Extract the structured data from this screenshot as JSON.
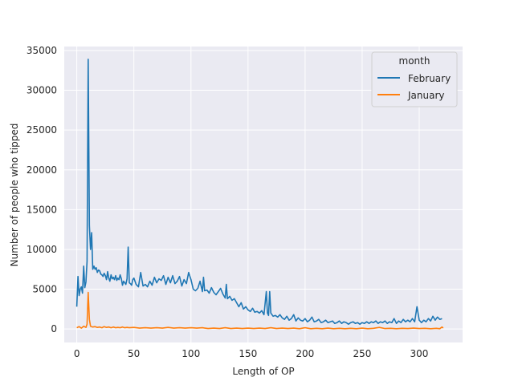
{
  "chart_data": {
    "type": "line",
    "xlabel": "Length of OP",
    "ylabel": "Number of people who tipped",
    "xlim": [
      -11,
      338
    ],
    "ylim": [
      -1700,
      35500
    ],
    "xticks": [
      0,
      50,
      100,
      150,
      200,
      250,
      300
    ],
    "yticks": [
      0,
      5000,
      10000,
      15000,
      20000,
      25000,
      30000,
      35000
    ],
    "grid": true,
    "legend": {
      "title": "month",
      "placement": "top-right",
      "entries": [
        "February",
        "January"
      ]
    },
    "series": [
      {
        "name": "February",
        "color": "#1f77b4",
        "points": [
          [
            0,
            2800
          ],
          [
            1,
            6600
          ],
          [
            2,
            4200
          ],
          [
            3,
            5000
          ],
          [
            4,
            5300
          ],
          [
            5,
            4500
          ],
          [
            6,
            7900
          ],
          [
            7,
            5200
          ],
          [
            8,
            5900
          ],
          [
            9,
            8500
          ],
          [
            10,
            33900
          ],
          [
            11,
            13000
          ],
          [
            12,
            10000
          ],
          [
            13,
            12100
          ],
          [
            14,
            7500
          ],
          [
            15,
            7900
          ],
          [
            16,
            7500
          ],
          [
            17,
            7700
          ],
          [
            18,
            7100
          ],
          [
            19,
            7400
          ],
          [
            20,
            7300
          ],
          [
            21,
            6900
          ],
          [
            22,
            6800
          ],
          [
            23,
            6600
          ],
          [
            24,
            7000
          ],
          [
            25,
            6700
          ],
          [
            26,
            6200
          ],
          [
            27,
            7200
          ],
          [
            28,
            6400
          ],
          [
            29,
            6000
          ],
          [
            30,
            6800
          ],
          [
            31,
            6300
          ],
          [
            32,
            6500
          ],
          [
            33,
            6200
          ],
          [
            34,
            6700
          ],
          [
            35,
            6100
          ],
          [
            36,
            6400
          ],
          [
            37,
            6200
          ],
          [
            38,
            6800
          ],
          [
            39,
            6300
          ],
          [
            40,
            5500
          ],
          [
            41,
            6000
          ],
          [
            42,
            5800
          ],
          [
            43,
            5600
          ],
          [
            44,
            6300
          ],
          [
            45,
            10300
          ],
          [
            46,
            5800
          ],
          [
            47,
            5700
          ],
          [
            48,
            5500
          ],
          [
            49,
            6200
          ],
          [
            50,
            6400
          ],
          [
            52,
            5600
          ],
          [
            54,
            5300
          ],
          [
            56,
            7100
          ],
          [
            58,
            5400
          ],
          [
            60,
            5600
          ],
          [
            62,
            5300
          ],
          [
            64,
            6000
          ],
          [
            66,
            5500
          ],
          [
            68,
            6500
          ],
          [
            70,
            5800
          ],
          [
            72,
            6300
          ],
          [
            74,
            6100
          ],
          [
            76,
            6700
          ],
          [
            78,
            5600
          ],
          [
            80,
            6500
          ],
          [
            82,
            5800
          ],
          [
            84,
            6700
          ],
          [
            86,
            5700
          ],
          [
            88,
            6000
          ],
          [
            90,
            6600
          ],
          [
            92,
            5400
          ],
          [
            94,
            6200
          ],
          [
            96,
            5700
          ],
          [
            98,
            7100
          ],
          [
            100,
            6200
          ],
          [
            102,
            5000
          ],
          [
            104,
            4800
          ],
          [
            106,
            5100
          ],
          [
            108,
            6000
          ],
          [
            110,
            4700
          ],
          [
            111,
            6500
          ],
          [
            112,
            4800
          ],
          [
            114,
            4900
          ],
          [
            116,
            4500
          ],
          [
            118,
            5200
          ],
          [
            120,
            4600
          ],
          [
            122,
            4300
          ],
          [
            124,
            4700
          ],
          [
            126,
            5100
          ],
          [
            128,
            4400
          ],
          [
            130,
            3900
          ],
          [
            131,
            5600
          ],
          [
            132,
            3800
          ],
          [
            134,
            4100
          ],
          [
            136,
            3600
          ],
          [
            138,
            3800
          ],
          [
            140,
            3300
          ],
          [
            142,
            2800
          ],
          [
            144,
            3300
          ],
          [
            146,
            2500
          ],
          [
            148,
            2800
          ],
          [
            150,
            2400
          ],
          [
            152,
            2200
          ],
          [
            154,
            2600
          ],
          [
            156,
            2100
          ],
          [
            158,
            2200
          ],
          [
            160,
            2000
          ],
          [
            162,
            2300
          ],
          [
            164,
            1800
          ],
          [
            166,
            4700
          ],
          [
            167,
            2000
          ],
          [
            168,
            1700
          ],
          [
            169,
            4700
          ],
          [
            170,
            2000
          ],
          [
            172,
            1600
          ],
          [
            174,
            1700
          ],
          [
            176,
            1500
          ],
          [
            178,
            1800
          ],
          [
            180,
            1400
          ],
          [
            182,
            1200
          ],
          [
            184,
            1600
          ],
          [
            186,
            1100
          ],
          [
            188,
            1300
          ],
          [
            190,
            1800
          ],
          [
            192,
            1000
          ],
          [
            194,
            1400
          ],
          [
            196,
            1100
          ],
          [
            198,
            1000
          ],
          [
            200,
            1300
          ],
          [
            202,
            900
          ],
          [
            204,
            1100
          ],
          [
            206,
            1500
          ],
          [
            208,
            900
          ],
          [
            210,
            1000
          ],
          [
            212,
            1200
          ],
          [
            214,
            800
          ],
          [
            216,
            900
          ],
          [
            218,
            1100
          ],
          [
            220,
            800
          ],
          [
            222,
            900
          ],
          [
            224,
            1000
          ],
          [
            226,
            700
          ],
          [
            228,
            800
          ],
          [
            230,
            1000
          ],
          [
            232,
            700
          ],
          [
            234,
            900
          ],
          [
            236,
            800
          ],
          [
            238,
            600
          ],
          [
            240,
            800
          ],
          [
            242,
            900
          ],
          [
            244,
            700
          ],
          [
            246,
            800
          ],
          [
            248,
            600
          ],
          [
            250,
            800
          ],
          [
            252,
            700
          ],
          [
            254,
            900
          ],
          [
            256,
            700
          ],
          [
            258,
            900
          ],
          [
            260,
            800
          ],
          [
            262,
            1000
          ],
          [
            264,
            700
          ],
          [
            266,
            900
          ],
          [
            268,
            800
          ],
          [
            270,
            1000
          ],
          [
            272,
            700
          ],
          [
            274,
            900
          ],
          [
            276,
            800
          ],
          [
            278,
            1300
          ],
          [
            280,
            700
          ],
          [
            282,
            1000
          ],
          [
            284,
            800
          ],
          [
            286,
            1200
          ],
          [
            288,
            900
          ],
          [
            290,
            1100
          ],
          [
            292,
            900
          ],
          [
            294,
            1300
          ],
          [
            296,
            900
          ],
          [
            298,
            2800
          ],
          [
            300,
            1100
          ],
          [
            302,
            800
          ],
          [
            304,
            1100
          ],
          [
            306,
            900
          ],
          [
            308,
            1300
          ],
          [
            310,
            1000
          ],
          [
            312,
            1600
          ],
          [
            314,
            1100
          ],
          [
            316,
            1500
          ],
          [
            318,
            1200
          ],
          [
            320,
            1300
          ]
        ]
      },
      {
        "name": "January",
        "color": "#ff7f0e",
        "points": [
          [
            0,
            150
          ],
          [
            2,
            300
          ],
          [
            4,
            100
          ],
          [
            6,
            350
          ],
          [
            8,
            200
          ],
          [
            9,
            600
          ],
          [
            10,
            4600
          ],
          [
            11,
            1200
          ],
          [
            12,
            350
          ],
          [
            14,
            250
          ],
          [
            16,
            300
          ],
          [
            18,
            200
          ],
          [
            20,
            250
          ],
          [
            22,
            150
          ],
          [
            24,
            300
          ],
          [
            26,
            200
          ],
          [
            28,
            250
          ],
          [
            30,
            150
          ],
          [
            32,
            250
          ],
          [
            34,
            150
          ],
          [
            36,
            200
          ],
          [
            38,
            150
          ],
          [
            40,
            250
          ],
          [
            42,
            150
          ],
          [
            44,
            200
          ],
          [
            46,
            150
          ],
          [
            50,
            200
          ],
          [
            55,
            100
          ],
          [
            60,
            150
          ],
          [
            65,
            100
          ],
          [
            70,
            150
          ],
          [
            75,
            100
          ],
          [
            80,
            200
          ],
          [
            85,
            100
          ],
          [
            90,
            150
          ],
          [
            95,
            100
          ],
          [
            100,
            150
          ],
          [
            105,
            100
          ],
          [
            110,
            150
          ],
          [
            115,
            50
          ],
          [
            120,
            100
          ],
          [
            125,
            50
          ],
          [
            130,
            150
          ],
          [
            135,
            50
          ],
          [
            140,
            100
          ],
          [
            145,
            50
          ],
          [
            150,
            100
          ],
          [
            155,
            50
          ],
          [
            160,
            100
          ],
          [
            165,
            50
          ],
          [
            170,
            150
          ],
          [
            175,
            50
          ],
          [
            180,
            100
          ],
          [
            185,
            50
          ],
          [
            190,
            100
          ],
          [
            195,
            30
          ],
          [
            200,
            150
          ],
          [
            205,
            30
          ],
          [
            210,
            80
          ],
          [
            215,
            30
          ],
          [
            220,
            100
          ],
          [
            225,
            30
          ],
          [
            230,
            80
          ],
          [
            235,
            30
          ],
          [
            240,
            80
          ],
          [
            245,
            30
          ],
          [
            250,
            100
          ],
          [
            255,
            30
          ],
          [
            260,
            80
          ],
          [
            265,
            200
          ],
          [
            270,
            50
          ],
          [
            275,
            80
          ],
          [
            280,
            30
          ],
          [
            285,
            80
          ],
          [
            290,
            50
          ],
          [
            295,
            100
          ],
          [
            300,
            50
          ],
          [
            305,
            80
          ],
          [
            310,
            30
          ],
          [
            315,
            80
          ],
          [
            318,
            30
          ],
          [
            320,
            250
          ],
          [
            321,
            100
          ]
        ]
      }
    ]
  }
}
